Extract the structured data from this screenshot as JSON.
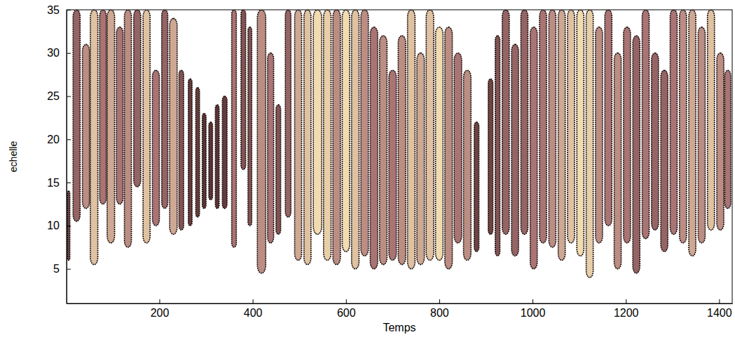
{
  "chart_data": {
    "type": "contour",
    "x_label": "Temps",
    "y_label": "echelle",
    "xlim": [
      1,
      1428
    ],
    "ylim": [
      1,
      35
    ],
    "xticks": [
      200,
      400,
      600,
      800,
      1000,
      1200,
      1400
    ],
    "yticks": [
      5,
      10,
      15,
      20,
      25,
      30,
      35
    ],
    "ridges": [
      [
        3,
        8,
        6,
        14,
        0.2
      ],
      [
        15,
        30,
        10.5,
        35,
        0.4
      ],
      [
        35,
        50,
        12,
        31,
        0.6
      ],
      [
        52,
        68,
        5.5,
        35,
        0.8
      ],
      [
        72,
        86,
        12.5,
        35,
        0.5
      ],
      [
        88,
        104,
        8,
        35,
        0.7
      ],
      [
        108,
        122,
        12.5,
        33,
        0.5
      ],
      [
        125,
        140,
        7.5,
        35,
        0.6
      ],
      [
        145,
        160,
        14.5,
        35,
        0.4
      ],
      [
        165,
        180,
        8,
        35,
        0.8
      ],
      [
        185,
        200,
        10,
        28,
        0.5
      ],
      [
        205,
        218,
        12,
        35,
        0.4
      ],
      [
        222,
        238,
        9,
        34,
        0.7
      ],
      [
        242,
        252,
        9.5,
        28,
        0.3
      ],
      [
        262,
        270,
        10,
        27,
        0.15
      ],
      [
        278,
        286,
        11,
        26,
        0.15
      ],
      [
        292,
        300,
        12,
        23,
        0.1
      ],
      [
        306,
        314,
        13,
        22,
        0.1
      ],
      [
        320,
        328,
        12,
        24,
        0.1
      ],
      [
        335,
        345,
        12,
        25,
        0.15
      ],
      [
        355,
        365,
        7.5,
        35,
        0.5
      ],
      [
        375,
        385,
        16.5,
        35,
        0.3
      ],
      [
        390,
        398,
        10,
        33,
        0.3
      ],
      [
        410,
        428,
        4.5,
        35,
        0.6
      ],
      [
        432,
        445,
        8,
        30,
        0.5
      ],
      [
        450,
        460,
        9,
        24,
        0.3
      ],
      [
        470,
        482,
        11,
        35,
        0.4
      ],
      [
        490,
        505,
        6,
        35,
        0.7
      ],
      [
        510,
        525,
        5.5,
        35,
        0.8
      ],
      [
        530,
        548,
        9,
        35,
        0.9
      ],
      [
        552,
        568,
        6,
        35,
        0.85
      ],
      [
        572,
        588,
        5.5,
        35,
        0.6
      ],
      [
        592,
        608,
        7,
        35,
        0.9
      ],
      [
        612,
        628,
        5,
        35,
        0.8
      ],
      [
        632,
        648,
        6.5,
        35,
        0.6
      ],
      [
        652,
        668,
        5,
        33,
        0.5
      ],
      [
        672,
        688,
        5.5,
        32,
        0.6
      ],
      [
        692,
        708,
        6,
        28,
        0.5
      ],
      [
        712,
        728,
        5.5,
        32,
        0.6
      ],
      [
        732,
        748,
        5,
        35,
        0.8
      ],
      [
        752,
        768,
        5.5,
        30,
        0.7
      ],
      [
        772,
        788,
        6,
        35,
        0.8
      ],
      [
        792,
        808,
        6,
        33,
        0.9
      ],
      [
        812,
        828,
        5,
        33,
        0.6
      ],
      [
        832,
        848,
        8,
        30,
        0.5
      ],
      [
        852,
        868,
        6,
        28,
        0.6
      ],
      [
        875,
        885,
        7,
        22,
        0.2
      ],
      [
        905,
        915,
        9,
        27,
        0.2
      ],
      [
        920,
        930,
        6.5,
        32,
        0.3
      ],
      [
        935,
        950,
        9,
        35,
        0.4
      ],
      [
        955,
        970,
        6.5,
        31,
        0.4
      ],
      [
        975,
        990,
        9,
        35,
        0.4
      ],
      [
        995,
        1010,
        5,
        33,
        0.5
      ],
      [
        1015,
        1030,
        8,
        35,
        0.5
      ],
      [
        1035,
        1050,
        7.5,
        35,
        0.6
      ],
      [
        1055,
        1070,
        6,
        35,
        0.7
      ],
      [
        1075,
        1090,
        8,
        35,
        0.8
      ],
      [
        1095,
        1110,
        6.5,
        35,
        0.9
      ],
      [
        1115,
        1130,
        4,
        35,
        0.85
      ],
      [
        1135,
        1150,
        8,
        33,
        0.6
      ],
      [
        1155,
        1170,
        10,
        35,
        0.5
      ],
      [
        1175,
        1190,
        5,
        30,
        0.6
      ],
      [
        1195,
        1210,
        8,
        33,
        0.5
      ],
      [
        1215,
        1230,
        4.5,
        32,
        0.4
      ],
      [
        1235,
        1250,
        8.5,
        35,
        0.5
      ],
      [
        1255,
        1270,
        9.5,
        30,
        0.4
      ],
      [
        1275,
        1290,
        7,
        28,
        0.4
      ],
      [
        1295,
        1310,
        9,
        35,
        0.5
      ],
      [
        1315,
        1330,
        8,
        35,
        0.6
      ],
      [
        1335,
        1350,
        6.5,
        35,
        0.7
      ],
      [
        1355,
        1370,
        8,
        33,
        0.6
      ],
      [
        1375,
        1390,
        9.5,
        35,
        0.8
      ],
      [
        1395,
        1410,
        9.5,
        30,
        0.6
      ],
      [
        1412,
        1425,
        12,
        28,
        0.5
      ]
    ]
  }
}
